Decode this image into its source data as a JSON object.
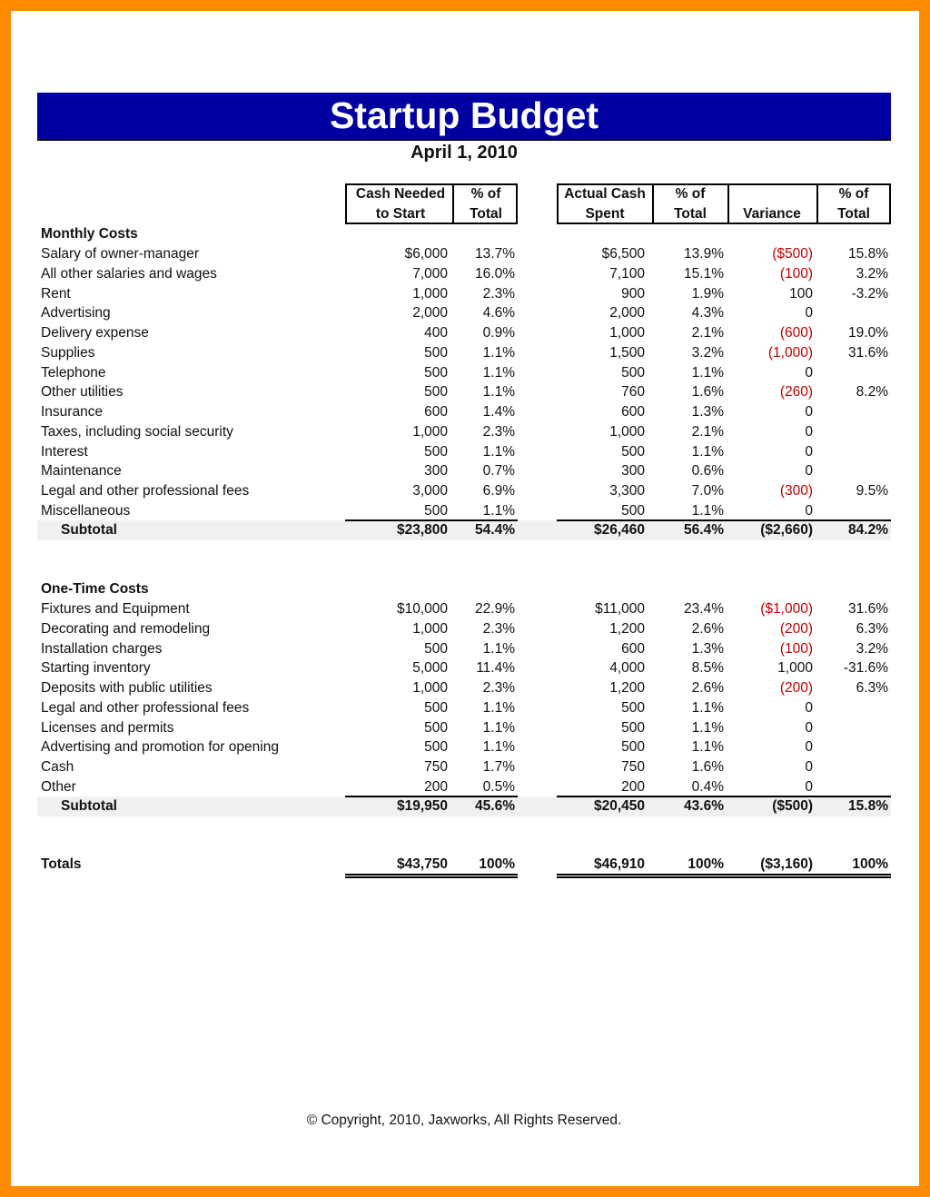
{
  "header": {
    "title": "Startup Budget",
    "date": "April 1, 2010"
  },
  "columns": [
    [
      "Cash Needed",
      "to Start"
    ],
    [
      "% of",
      "Total"
    ],
    [
      "Actual Cash",
      "Spent"
    ],
    [
      "% of",
      "Total"
    ],
    [
      "Variance"
    ],
    [
      "% of",
      "Total"
    ]
  ],
  "sections": [
    {
      "heading": "Monthly Costs",
      "rows": [
        [
          "Salary of owner-manager",
          "$6,000",
          "13.7%",
          "$6,500",
          "13.9%",
          "($500)",
          "15.8%"
        ],
        [
          "All other salaries and wages",
          "7,000",
          "16.0%",
          "7,100",
          "15.1%",
          "(100)",
          "3.2%"
        ],
        [
          "Rent",
          "1,000",
          "2.3%",
          "900",
          "1.9%",
          "100",
          "-3.2%"
        ],
        [
          "Advertising",
          "2,000",
          "4.6%",
          "2,000",
          "4.3%",
          "0",
          null
        ],
        [
          "Delivery expense",
          "400",
          "0.9%",
          "1,000",
          "2.1%",
          "(600)",
          "19.0%"
        ],
        [
          "Supplies",
          "500",
          "1.1%",
          "1,500",
          "3.2%",
          "(1,000)",
          "31.6%"
        ],
        [
          "Telephone",
          "500",
          "1.1%",
          "500",
          "1.1%",
          "0",
          null
        ],
        [
          "Other utilities",
          "500",
          "1.1%",
          "760",
          "1.6%",
          "(260)",
          "8.2%"
        ],
        [
          "Insurance",
          "600",
          "1.4%",
          "600",
          "1.3%",
          "0",
          null
        ],
        [
          "Taxes, including social security",
          "1,000",
          "2.3%",
          "1,000",
          "2.1%",
          "0",
          null
        ],
        [
          "Interest",
          "500",
          "1.1%",
          "500",
          "1.1%",
          "0",
          null
        ],
        [
          "Maintenance",
          "300",
          "0.7%",
          "300",
          "0.6%",
          "0",
          null
        ],
        [
          "Legal and other professional fees",
          "3,000",
          "6.9%",
          "3,300",
          "7.0%",
          "(300)",
          "9.5%"
        ],
        [
          "Miscellaneous",
          "500",
          "1.1%",
          "500",
          "1.1%",
          "0",
          null
        ]
      ],
      "subtotal": [
        "Subtotal",
        "$23,800",
        "54.4%",
        "$26,460",
        "56.4%",
        "($2,660)",
        "84.2%"
      ]
    },
    {
      "heading": "One-Time Costs",
      "rows": [
        [
          "Fixtures and Equipment",
          "$10,000",
          "22.9%",
          "$11,000",
          "23.4%",
          "($1,000)",
          "31.6%"
        ],
        [
          "Decorating and remodeling",
          "1,000",
          "2.3%",
          "1,200",
          "2.6%",
          "(200)",
          "6.3%"
        ],
        [
          "Installation charges",
          "500",
          "1.1%",
          "600",
          "1.3%",
          "(100)",
          "3.2%"
        ],
        [
          "Starting inventory",
          "5,000",
          "11.4%",
          "4,000",
          "8.5%",
          "1,000",
          "-31.6%"
        ],
        [
          "Deposits with public utilities",
          "1,000",
          "2.3%",
          "1,200",
          "2.6%",
          "(200)",
          "6.3%"
        ],
        [
          "Legal and other professional fees",
          "500",
          "1.1%",
          "500",
          "1.1%",
          "0",
          null
        ],
        [
          "Licenses and permits",
          "500",
          "1.1%",
          "500",
          "1.1%",
          "0",
          null
        ],
        [
          "Advertising and promotion for opening",
          "500",
          "1.1%",
          "500",
          "1.1%",
          "0",
          null
        ],
        [
          "Cash",
          "750",
          "1.7%",
          "750",
          "1.6%",
          "0",
          null
        ],
        [
          "Other",
          "200",
          "0.5%",
          "200",
          "0.4%",
          "0",
          null
        ]
      ],
      "subtotal": [
        "Subtotal",
        "$19,950",
        "45.6%",
        "$20,450",
        "43.6%",
        "($500)",
        "15.8%"
      ]
    }
  ],
  "totals": [
    "Totals",
    "$43,750",
    "100%",
    "$46,910",
    "100%",
    "($3,160)",
    "100%"
  ],
  "footer": "© Copyright, 2010, Jaxworks, All Rights Reserved."
}
